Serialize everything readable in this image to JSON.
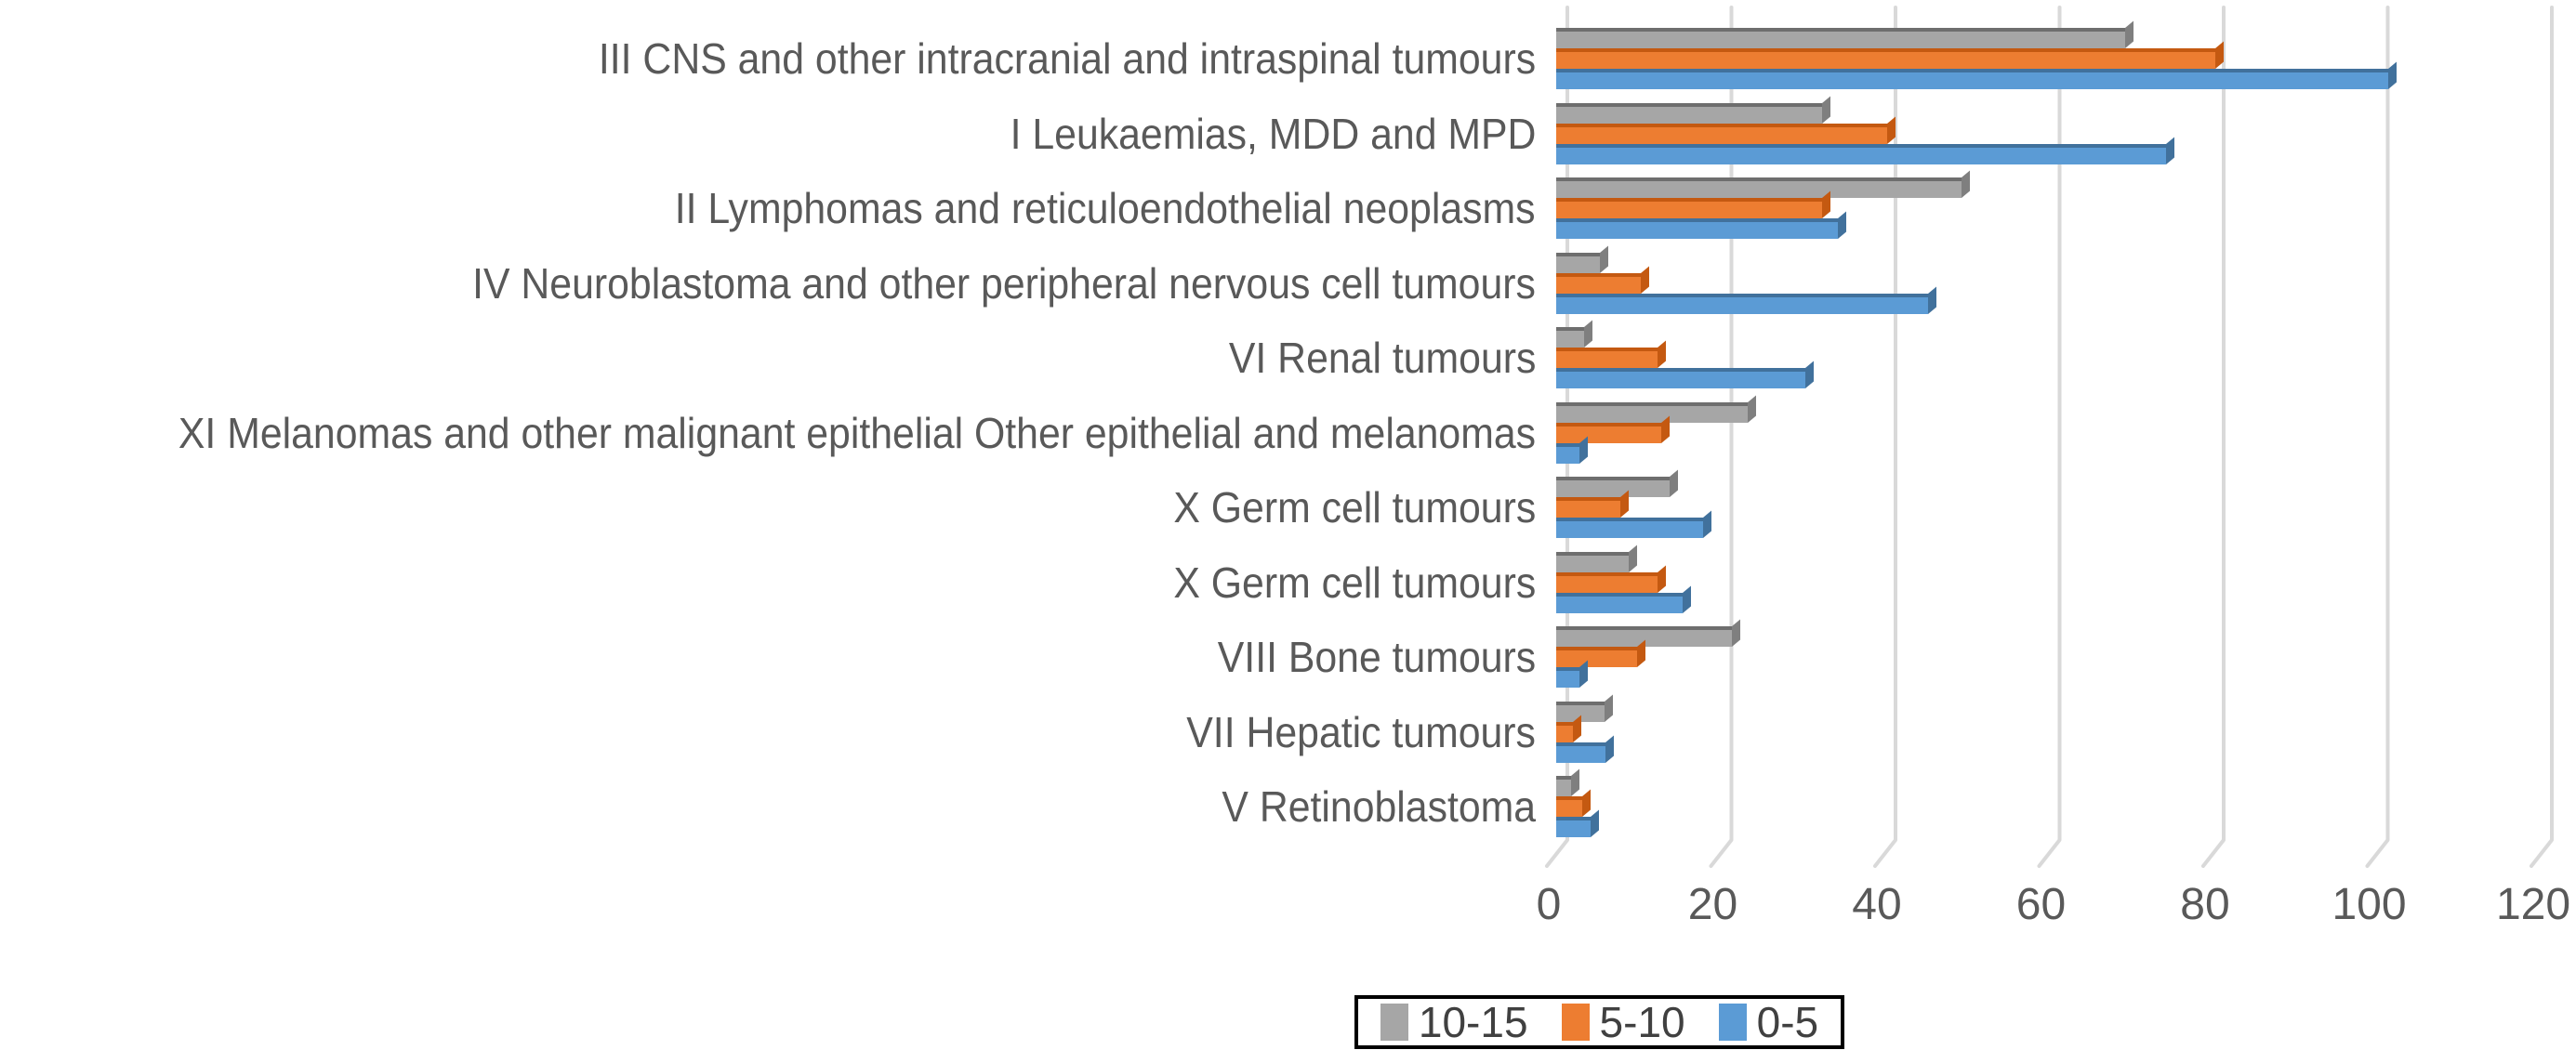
{
  "chart_data": {
    "type": "bar",
    "orientation": "horizontal",
    "style": "3d-clustered-bar",
    "title": "",
    "xlabel": "",
    "ylabel": "",
    "xlim": [
      0,
      120
    ],
    "xticks": [
      0,
      20,
      40,
      60,
      80,
      100,
      120
    ],
    "grid": "vertical-gridlines",
    "legend_position": "bottom-center",
    "legend_bordered": true,
    "categories": [
      "III CNS and other intracranial and intraspinal tumours",
      "I Leukaemias, MDD and MPD",
      "II Lymphomas and reticuloendothelial neoplasms",
      "IV Neuroblastoma and other peripheral nervous cell tumours",
      "VI Renal tumours",
      "XI Melanomas and other malignant epithelial Other epithelial and melanomas",
      "X Germ cell tumours",
      "X Germ cell tumours",
      "VIII Bone tumours",
      "VII Hepatic tumours",
      "V Retinoblastoma"
    ],
    "series": [
      {
        "name": "10-15",
        "color": "#A6A6A6",
        "color_top": "#6E6E6E",
        "color_side": "#7F7F7F",
        "values": [
          68,
          31,
          48,
          4,
          2,
          22,
          12.5,
          7.5,
          20,
          4.5,
          0.4
        ]
      },
      {
        "name": "5-10",
        "color": "#ED7D31",
        "color_top": "#C45911",
        "color_side": "#C45911",
        "values": [
          79,
          39,
          31,
          9,
          11,
          11.5,
          6.5,
          11,
          8.5,
          0.7,
          1.8
        ]
      },
      {
        "name": "0-5",
        "color": "#5B9BD5",
        "color_top": "#41719C",
        "color_side": "#41719C",
        "values": [
          100,
          73,
          33,
          44,
          29,
          1.5,
          16.5,
          14,
          1.5,
          4.7,
          2.8
        ]
      }
    ]
  },
  "colors": {
    "background": "#FFFFFF",
    "gridline": "#D9D9D9",
    "tick_text": "#595959",
    "category_text": "#595959",
    "legend_text": "#404040",
    "legend_border": "#000000"
  }
}
